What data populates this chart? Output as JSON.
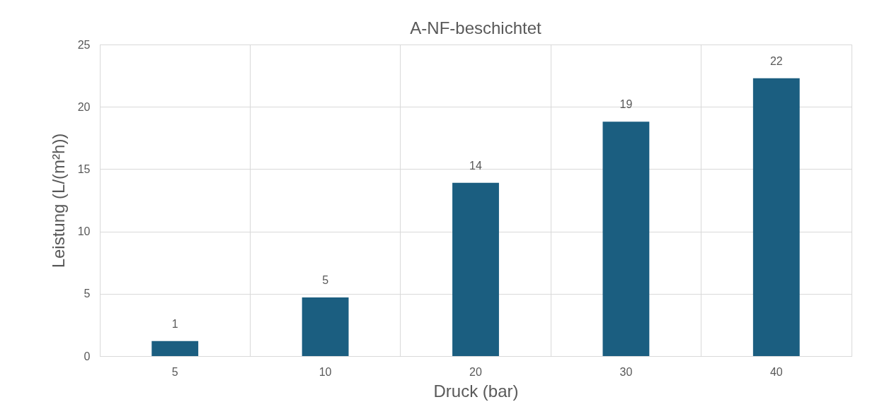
{
  "chart_data": {
    "type": "bar",
    "title": "A-NF-beschichtet",
    "xlabel": "Druck (bar)",
    "ylabel": "Leistung (L/(m²h))",
    "categories": [
      "5",
      "10",
      "20",
      "30",
      "40"
    ],
    "values": [
      1.2,
      4.7,
      13.9,
      18.8,
      22.3
    ],
    "value_labels": [
      "1",
      "5",
      "14",
      "19",
      "22"
    ],
    "color": "#1b5e80",
    "ylim": [
      0,
      25
    ],
    "yticks": [
      0,
      5,
      10,
      15,
      20,
      25
    ],
    "grid": true
  }
}
